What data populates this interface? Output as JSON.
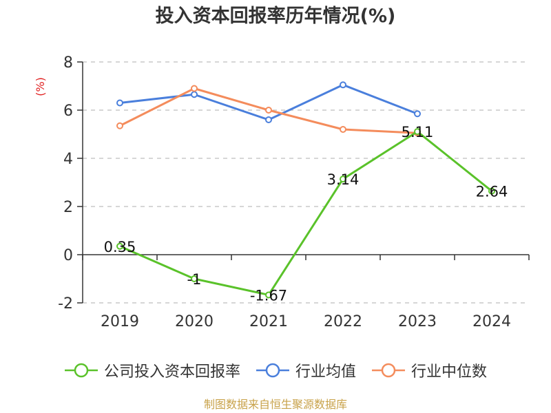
{
  "chart_data": {
    "type": "line",
    "title": "投入资本回报率历年情况(%)",
    "ylabel": "(%)",
    "xlabel": "",
    "categories": [
      "2019",
      "2020",
      "2021",
      "2022",
      "2023",
      "2024"
    ],
    "ylim": [
      -2,
      8
    ],
    "yticks": [
      -2,
      0,
      2,
      4,
      6,
      8
    ],
    "grid": true,
    "legend_position": "bottom",
    "series": [
      {
        "name": "公司投入资本回报率",
        "color": "#5ac22a",
        "values": [
          0.35,
          -1,
          -1.67,
          3.14,
          5.11,
          2.64
        ],
        "labels": [
          "0.35",
          "-1",
          "-1.67",
          "3.14",
          "5.11",
          "2.64"
        ]
      },
      {
        "name": "行业均值",
        "color": "#4a7fdc",
        "values": [
          6.3,
          6.65,
          5.6,
          7.05,
          5.85,
          null
        ]
      },
      {
        "name": "行业中位数",
        "color": "#f48c5c",
        "values": [
          5.35,
          6.9,
          6.0,
          5.2,
          5.05,
          null
        ]
      }
    ]
  },
  "source_note": "制图数据来自恒生聚源数据库"
}
